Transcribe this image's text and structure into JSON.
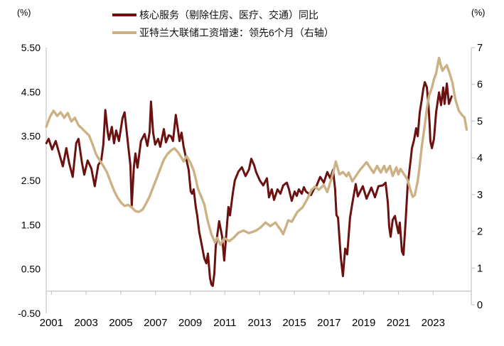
{
  "chart_data": {
    "type": "line",
    "title": "",
    "grid": false,
    "legend": {
      "position": "top-center"
    },
    "left_axis": {
      "unit": "(%)",
      "min": -0.5,
      "max": 5.5,
      "tick_values": [
        5.5,
        4.5,
        3.5,
        2.5,
        1.5,
        0.5,
        -0.5
      ],
      "tick_labels": [
        "5.50",
        "4.50",
        "3.50",
        "2.50",
        "1.50",
        "0.50",
        "-0.50"
      ]
    },
    "right_axis": {
      "unit": "(%)",
      "min": 0,
      "max": 7,
      "tick_values": [
        7,
        6,
        5,
        4,
        3,
        2,
        1,
        0
      ],
      "tick_labels": [
        "7",
        "6",
        "5",
        "4",
        "3",
        "2",
        "1",
        "0"
      ]
    },
    "x_axis": {
      "min": 2000.7,
      "max": 2025.2,
      "tick_years": [
        2001,
        2003,
        2005,
        2007,
        2009,
        2011,
        2013,
        2015,
        2017,
        2019,
        2021,
        2023
      ]
    },
    "series": [
      {
        "name": "核心服务（剔除住房、医疗、交通）同比",
        "axis": "left",
        "color": "#6b1211",
        "width": 3,
        "points": [
          [
            2000.71,
            3.34
          ],
          [
            2000.84,
            3.44
          ],
          [
            2001.04,
            3.2
          ],
          [
            2001.25,
            3.39
          ],
          [
            2001.45,
            3.11
          ],
          [
            2001.66,
            2.82
          ],
          [
            2001.86,
            3.23
          ],
          [
            2002.02,
            2.9
          ],
          [
            2002.23,
            2.58
          ],
          [
            2002.43,
            3.34
          ],
          [
            2002.56,
            3.44
          ],
          [
            2002.76,
            2.9
          ],
          [
            2002.89,
            2.63
          ],
          [
            2003.09,
            2.95
          ],
          [
            2003.3,
            2.77
          ],
          [
            2003.5,
            2.37
          ],
          [
            2003.7,
            2.85
          ],
          [
            2003.87,
            2.95
          ],
          [
            2003.99,
            3.3
          ],
          [
            2004.11,
            4.09
          ],
          [
            2004.24,
            3.6
          ],
          [
            2004.32,
            3.42
          ],
          [
            2004.48,
            3.71
          ],
          [
            2004.61,
            3.34
          ],
          [
            2004.73,
            3.63
          ],
          [
            2004.89,
            3.39
          ],
          [
            2005.1,
            3.91
          ],
          [
            2005.22,
            4.04
          ],
          [
            2005.43,
            3.26
          ],
          [
            2005.55,
            2.85
          ],
          [
            2005.63,
            1.93
          ],
          [
            2005.75,
            2.8
          ],
          [
            2005.84,
            3.11
          ],
          [
            2005.96,
            2.79
          ],
          [
            2006.16,
            3.39
          ],
          [
            2006.37,
            3.55
          ],
          [
            2006.53,
            3.28
          ],
          [
            2006.66,
            3.6
          ],
          [
            2006.74,
            4.28
          ],
          [
            2006.86,
            3.58
          ],
          [
            2006.98,
            3.31
          ],
          [
            2007.15,
            3.44
          ],
          [
            2007.27,
            3.26
          ],
          [
            2007.48,
            3.66
          ],
          [
            2007.6,
            3.36
          ],
          [
            2007.76,
            3.52
          ],
          [
            2007.89,
            3.5
          ],
          [
            2008.01,
            3.39
          ],
          [
            2008.17,
            3.98
          ],
          [
            2008.3,
            3.63
          ],
          [
            2008.38,
            3.39
          ],
          [
            2008.5,
            3.58
          ],
          [
            2008.62,
            3.26
          ],
          [
            2008.79,
            2.95
          ],
          [
            2008.91,
            2.74
          ],
          [
            2009.03,
            2.25
          ],
          [
            2009.11,
            2.2
          ],
          [
            2009.2,
            2.3
          ],
          [
            2009.32,
            1.9
          ],
          [
            2009.4,
            1.71
          ],
          [
            2009.52,
            1.33
          ],
          [
            2009.65,
            1.07
          ],
          [
            2009.81,
            0.74
          ],
          [
            2009.93,
            0.63
          ],
          [
            2010.02,
            0.85
          ],
          [
            2010.14,
            0.3
          ],
          [
            2010.22,
            0.15
          ],
          [
            2010.3,
            0.12
          ],
          [
            2010.39,
            0.4
          ],
          [
            2010.47,
            1.01
          ],
          [
            2010.67,
            1.58
          ],
          [
            2010.84,
            1.23
          ],
          [
            2010.96,
            0.69
          ],
          [
            2011.08,
            1.3
          ],
          [
            2011.2,
            1.9
          ],
          [
            2011.29,
            1.71
          ],
          [
            2011.45,
            2.2
          ],
          [
            2011.57,
            2.5
          ],
          [
            2011.78,
            2.7
          ],
          [
            2011.98,
            2.8
          ],
          [
            2012.19,
            2.6
          ],
          [
            2012.39,
            2.75
          ],
          [
            2012.52,
            2.99
          ],
          [
            2012.68,
            2.85
          ],
          [
            2012.8,
            2.69
          ],
          [
            2013.01,
            2.5
          ],
          [
            2013.21,
            2.39
          ],
          [
            2013.42,
            2.55
          ],
          [
            2013.54,
            2.12
          ],
          [
            2013.7,
            2.3
          ],
          [
            2013.83,
            2.06
          ],
          [
            2014.03,
            2.3
          ],
          [
            2014.2,
            2.2
          ],
          [
            2014.36,
            2.39
          ],
          [
            2014.57,
            2.45
          ],
          [
            2014.69,
            2.3
          ],
          [
            2014.85,
            2.04
          ],
          [
            2015.02,
            2.25
          ],
          [
            2015.14,
            2.15
          ],
          [
            2015.26,
            2.3
          ],
          [
            2015.43,
            2.2
          ],
          [
            2015.55,
            2.35
          ],
          [
            2015.67,
            2.25
          ],
          [
            2015.84,
            2.2
          ],
          [
            2015.96,
            2.17
          ],
          [
            2016.12,
            2.3
          ],
          [
            2016.29,
            2.39
          ],
          [
            2016.49,
            2.58
          ],
          [
            2016.7,
            2.45
          ],
          [
            2016.9,
            2.69
          ],
          [
            2017.07,
            2.55
          ],
          [
            2017.23,
            2.74
          ],
          [
            2017.35,
            2.3
          ],
          [
            2017.43,
            1.72
          ],
          [
            2017.52,
            1.66
          ],
          [
            2017.6,
            1.2
          ],
          [
            2017.68,
            0.75
          ],
          [
            2017.8,
            0.34
          ],
          [
            2017.93,
            0.96
          ],
          [
            2018.05,
            0.83
          ],
          [
            2018.21,
            1.66
          ],
          [
            2018.34,
            1.98
          ],
          [
            2018.54,
            2.42
          ],
          [
            2018.66,
            2.14
          ],
          [
            2018.95,
            2.37
          ],
          [
            2019.16,
            2.09
          ],
          [
            2019.44,
            2.34
          ],
          [
            2019.65,
            2.12
          ],
          [
            2019.85,
            2.37
          ],
          [
            2020.1,
            2.39
          ],
          [
            2020.26,
            2.45
          ],
          [
            2020.39,
            2.0
          ],
          [
            2020.47,
            1.45
          ],
          [
            2020.55,
            1.23
          ],
          [
            2020.67,
            1.61
          ],
          [
            2020.8,
            1.7
          ],
          [
            2020.88,
            1.53
          ],
          [
            2021.0,
            1.31
          ],
          [
            2021.08,
            1.55
          ],
          [
            2021.2,
            0.9
          ],
          [
            2021.29,
            0.82
          ],
          [
            2021.41,
            1.55
          ],
          [
            2021.53,
            2.37
          ],
          [
            2021.7,
            2.95
          ],
          [
            2021.78,
            3.23
          ],
          [
            2021.9,
            3.42
          ],
          [
            2022.02,
            3.68
          ],
          [
            2022.11,
            3.5
          ],
          [
            2022.23,
            4.04
          ],
          [
            2022.35,
            4.33
          ],
          [
            2022.43,
            4.56
          ],
          [
            2022.52,
            4.72
          ],
          [
            2022.64,
            4.6
          ],
          [
            2022.72,
            4.25
          ],
          [
            2022.8,
            3.76
          ],
          [
            2022.84,
            3.39
          ],
          [
            2022.93,
            3.23
          ],
          [
            2023.05,
            3.44
          ],
          [
            2023.17,
            4.04
          ],
          [
            2023.34,
            4.49
          ],
          [
            2023.46,
            4.2
          ],
          [
            2023.58,
            4.6
          ],
          [
            2023.66,
            4.23
          ],
          [
            2023.79,
            4.69
          ],
          [
            2023.91,
            4.23
          ],
          [
            2024.07,
            4.4
          ]
        ]
      },
      {
        "name": "亚特兰大联储工资增速：领先6个月（右轴）",
        "axis": "right",
        "color": "#ccb184",
        "width": 3.4,
        "points": [
          [
            2000.71,
            4.85
          ],
          [
            2000.92,
            5.12
          ],
          [
            2001.12,
            5.28
          ],
          [
            2001.33,
            5.14
          ],
          [
            2001.53,
            5.24
          ],
          [
            2001.74,
            5.09
          ],
          [
            2001.94,
            5.22
          ],
          [
            2002.15,
            4.99
          ],
          [
            2002.35,
            5.09
          ],
          [
            2002.56,
            4.89
          ],
          [
            2002.76,
            4.8
          ],
          [
            2002.97,
            4.7
          ],
          [
            2003.17,
            4.61
          ],
          [
            2003.38,
            4.36
          ],
          [
            2003.58,
            4.09
          ],
          [
            2003.79,
            3.93
          ],
          [
            2003.99,
            3.78
          ],
          [
            2004.2,
            3.61
          ],
          [
            2004.4,
            3.36
          ],
          [
            2004.61,
            3.11
          ],
          [
            2004.81,
            2.92
          ],
          [
            2005.02,
            2.78
          ],
          [
            2005.22,
            2.69
          ],
          [
            2005.43,
            2.72
          ],
          [
            2005.63,
            2.65
          ],
          [
            2005.84,
            2.55
          ],
          [
            2006.04,
            2.53
          ],
          [
            2006.25,
            2.59
          ],
          [
            2006.45,
            2.75
          ],
          [
            2006.66,
            2.95
          ],
          [
            2006.86,
            3.2
          ],
          [
            2007.07,
            3.45
          ],
          [
            2007.27,
            3.7
          ],
          [
            2007.48,
            3.95
          ],
          [
            2007.68,
            4.1
          ],
          [
            2007.89,
            4.2
          ],
          [
            2008.09,
            4.26
          ],
          [
            2008.3,
            4.15
          ],
          [
            2008.5,
            4.0
          ],
          [
            2008.62,
            3.9
          ],
          [
            2008.79,
            4.05
          ],
          [
            2008.91,
            3.95
          ],
          [
            2009.03,
            3.85
          ],
          [
            2009.2,
            3.65
          ],
          [
            2009.32,
            3.42
          ],
          [
            2009.44,
            3.17
          ],
          [
            2009.61,
            2.97
          ],
          [
            2009.81,
            2.73
          ],
          [
            2010.02,
            2.26
          ],
          [
            2010.22,
            1.92
          ],
          [
            2010.43,
            1.69
          ],
          [
            2010.55,
            1.82
          ],
          [
            2010.75,
            1.63
          ],
          [
            2010.96,
            1.82
          ],
          [
            2011.25,
            1.73
          ],
          [
            2011.49,
            1.82
          ],
          [
            2011.78,
            1.96
          ],
          [
            2012.07,
            2.02
          ],
          [
            2012.39,
            1.95
          ],
          [
            2012.8,
            2.02
          ],
          [
            2013.05,
            2.1
          ],
          [
            2013.34,
            2.24
          ],
          [
            2013.62,
            2.14
          ],
          [
            2013.91,
            2.24
          ],
          [
            2014.24,
            2.02
          ],
          [
            2014.36,
            1.92
          ],
          [
            2014.65,
            2.3
          ],
          [
            2014.85,
            2.26
          ],
          [
            2015.18,
            2.53
          ],
          [
            2015.47,
            2.65
          ],
          [
            2015.75,
            2.88
          ],
          [
            2016.0,
            3.13
          ],
          [
            2016.2,
            3.22
          ],
          [
            2016.41,
            3.13
          ],
          [
            2016.7,
            3.26
          ],
          [
            2016.9,
            3.07
          ],
          [
            2017.19,
            3.51
          ],
          [
            2017.39,
            3.9
          ],
          [
            2017.6,
            3.55
          ],
          [
            2017.8,
            3.61
          ],
          [
            2018.01,
            3.5
          ],
          [
            2018.13,
            3.6
          ],
          [
            2018.34,
            3.36
          ],
          [
            2018.75,
            3.65
          ],
          [
            2019.16,
            3.88
          ],
          [
            2019.57,
            3.59
          ],
          [
            2019.77,
            3.78
          ],
          [
            2019.98,
            3.6
          ],
          [
            2020.18,
            3.78
          ],
          [
            2020.3,
            3.61
          ],
          [
            2020.51,
            3.78
          ],
          [
            2020.67,
            3.51
          ],
          [
            2020.88,
            3.74
          ],
          [
            2021.0,
            3.55
          ],
          [
            2021.12,
            3.7
          ],
          [
            2021.33,
            3.55
          ],
          [
            2021.53,
            3.4
          ],
          [
            2021.7,
            3.11
          ],
          [
            2021.82,
            2.94
          ],
          [
            2021.94,
            2.98
          ],
          [
            2022.11,
            3.36
          ],
          [
            2022.23,
            3.8
          ],
          [
            2022.35,
            4.32
          ],
          [
            2022.52,
            4.89
          ],
          [
            2022.64,
            5.34
          ],
          [
            2022.77,
            5.7
          ],
          [
            2022.93,
            5.91
          ],
          [
            2023.05,
            6.14
          ],
          [
            2023.17,
            6.3
          ],
          [
            2023.25,
            6.5
          ],
          [
            2023.34,
            6.72
          ],
          [
            2023.42,
            6.55
          ],
          [
            2023.54,
            6.37
          ],
          [
            2023.66,
            6.45
          ],
          [
            2023.79,
            6.52
          ],
          [
            2023.95,
            6.3
          ],
          [
            2024.11,
            6.05
          ],
          [
            2024.28,
            5.6
          ],
          [
            2024.48,
            5.28
          ],
          [
            2024.69,
            5.15
          ],
          [
            2024.81,
            5.1
          ],
          [
            2024.93,
            4.77
          ]
        ]
      }
    ]
  }
}
